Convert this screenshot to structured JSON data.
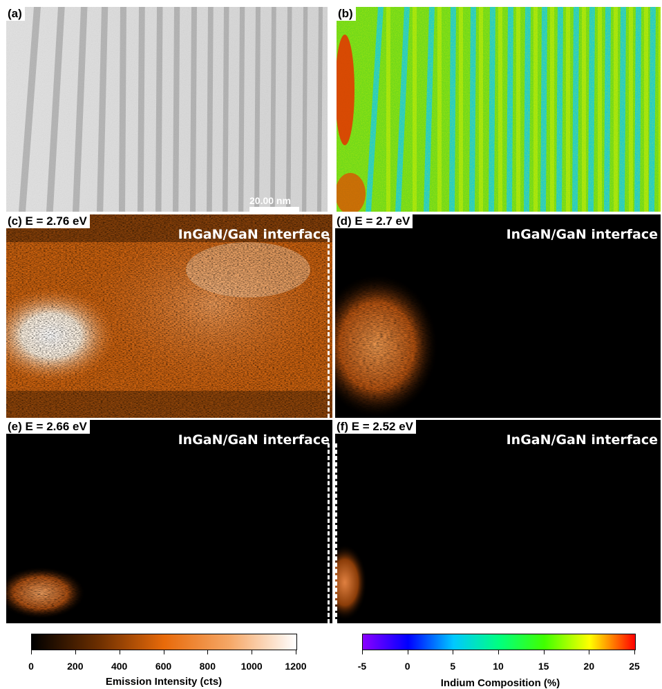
{
  "panels": {
    "a": {
      "label": "(a)",
      "scalebar": "20.00 nm"
    },
    "b": {
      "label": "(b)"
    },
    "c": {
      "label": "(c) E = 2.76 eV",
      "interface": "InGaN/GaN interface"
    },
    "d": {
      "label": "(d) E = 2.7 eV",
      "interface": "InGaN/GaN interface"
    },
    "e": {
      "label": "(e) E = 2.66 eV",
      "interface": "InGaN/GaN interface"
    },
    "f": {
      "label": "(f) E = 2.52 eV",
      "interface": "InGaN/GaN interface"
    }
  },
  "colorbars": {
    "emission": {
      "title": "Emission Intensity (cts)",
      "ticks": [
        "0",
        "200",
        "400",
        "600",
        "800",
        "1000",
        "1200"
      ],
      "range": [
        0,
        1200
      ],
      "colors": [
        "#000000",
        "#6b2e00",
        "#e86a0a",
        "#f5a868",
        "#ffffff"
      ]
    },
    "indium": {
      "title": "Indium Composition (%)",
      "ticks": [
        "-5",
        "0",
        "5",
        "10",
        "15",
        "20",
        "25"
      ],
      "range": [
        -5,
        25
      ],
      "colors": [
        "#8a00ff",
        "#0000ff",
        "#00c8ff",
        "#00ff80",
        "#40ff00",
        "#ffff00",
        "#ff0000"
      ]
    }
  }
}
